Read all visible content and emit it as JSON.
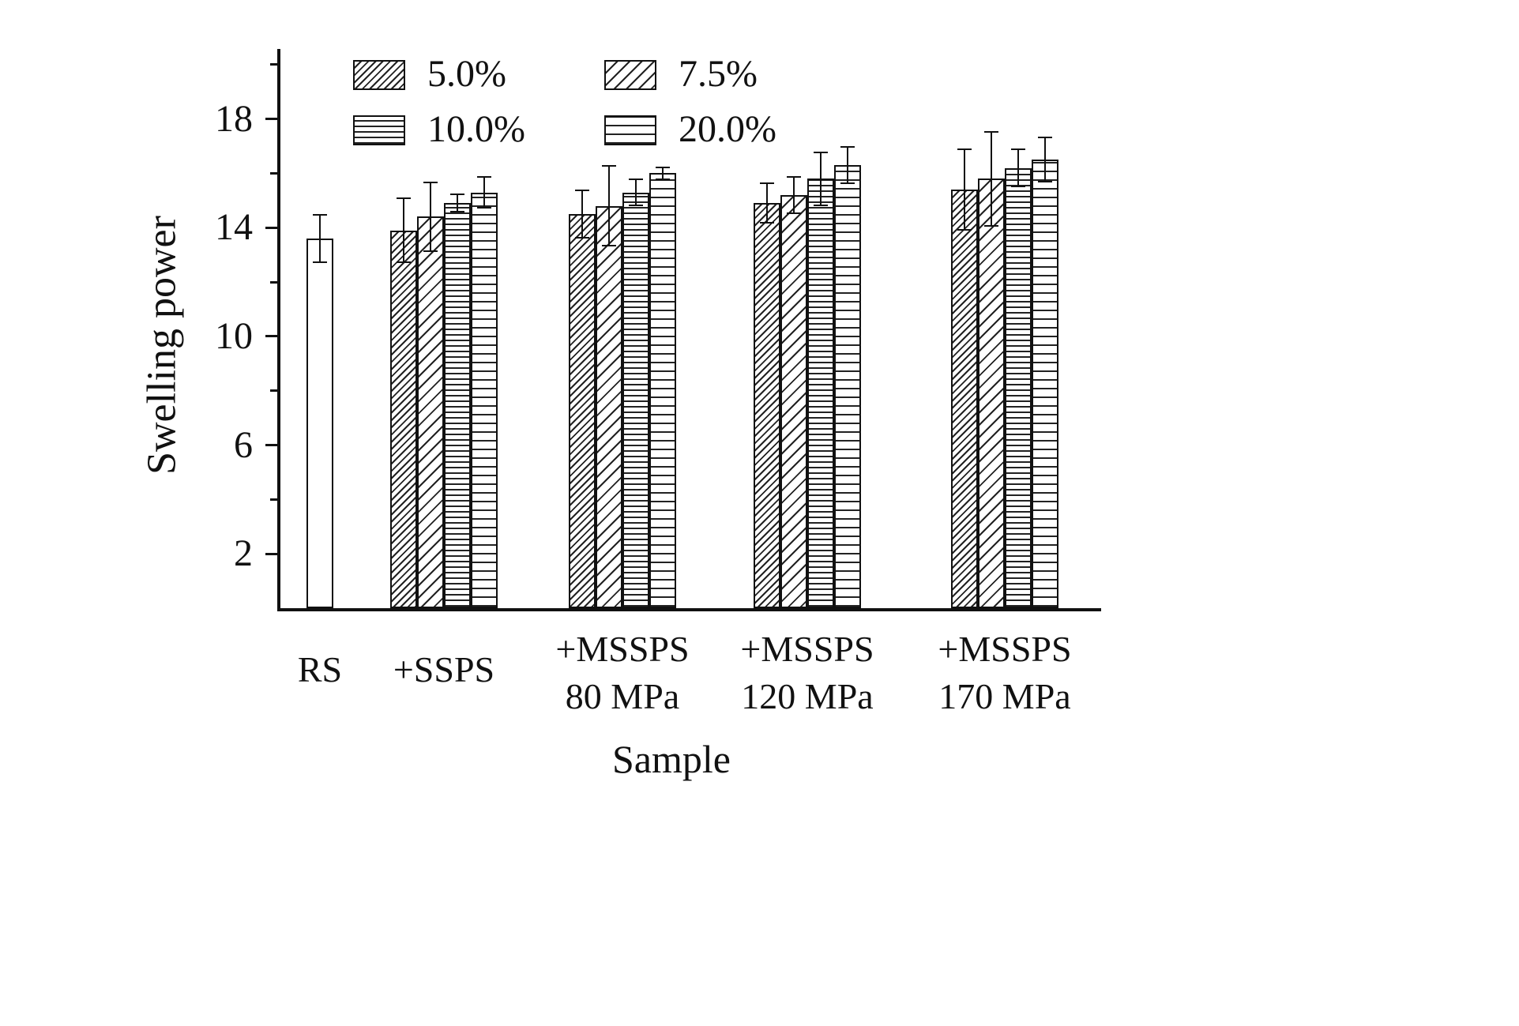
{
  "colors": {
    "ink": "#111111",
    "background": "#ffffff"
  },
  "chart_data": {
    "type": "bar",
    "title": "",
    "xlabel": "Sample",
    "ylabel": "Swelling power",
    "ylim": [
      0,
      20.4
    ],
    "yticks": [
      2,
      6,
      10,
      14,
      18
    ],
    "yticks_minor": [
      4,
      8,
      12,
      16,
      20
    ],
    "grid": false,
    "legend_position": "top-inside",
    "legend": [
      {
        "label": "5.0%",
        "pattern": "diag-dense"
      },
      {
        "label": "7.5%",
        "pattern": "diag-sparse"
      },
      {
        "label": "10.0%",
        "pattern": "horiz-dense"
      },
      {
        "label": "20.0%",
        "pattern": "horiz-sparse"
      }
    ],
    "groups": [
      {
        "label": "RS",
        "label_lines": [
          "RS"
        ],
        "bars": [
          {
            "series": "RS",
            "pattern": "plain",
            "value": 13.6,
            "error": 0.9
          }
        ]
      },
      {
        "label": "+SSPS",
        "label_lines": [
          "+SSPS"
        ],
        "bars": [
          {
            "series": "5.0%",
            "pattern": "diag-dense",
            "value": 13.9,
            "error": 1.2
          },
          {
            "series": "7.5%",
            "pattern": "diag-sparse",
            "value": 14.4,
            "error": 1.3
          },
          {
            "series": "10.0%",
            "pattern": "horiz-dense",
            "value": 14.9,
            "error": 0.35
          },
          {
            "series": "20.0%",
            "pattern": "horiz-sparse",
            "value": 15.3,
            "error": 0.6
          }
        ]
      },
      {
        "label": "+MSSPS 80 MPa",
        "label_lines": [
          "+MSSPS",
          "80 MPa"
        ],
        "bars": [
          {
            "series": "5.0%",
            "pattern": "diag-dense",
            "value": 14.5,
            "error": 0.9
          },
          {
            "series": "7.5%",
            "pattern": "diag-sparse",
            "value": 14.8,
            "error": 1.5
          },
          {
            "series": "10.0%",
            "pattern": "horiz-dense",
            "value": 15.3,
            "error": 0.5
          },
          {
            "series": "20.0%",
            "pattern": "horiz-sparse",
            "value": 16.0,
            "error": 0.25
          }
        ]
      },
      {
        "label": "+MSSPS 120 MPa",
        "label_lines": [
          "+MSSPS",
          "120 MPa"
        ],
        "bars": [
          {
            "series": "5.0%",
            "pattern": "diag-dense",
            "value": 14.9,
            "error": 0.75
          },
          {
            "series": "7.5%",
            "pattern": "diag-sparse",
            "value": 15.2,
            "error": 0.7
          },
          {
            "series": "10.0%",
            "pattern": "horiz-dense",
            "value": 15.8,
            "error": 1.0
          },
          {
            "series": "20.0%",
            "pattern": "horiz-sparse",
            "value": 16.3,
            "error": 0.7
          }
        ]
      },
      {
        "label": "+MSSPS 170 MPa",
        "label_lines": [
          "+MSSPS",
          "170 MPa"
        ],
        "bars": [
          {
            "series": "5.0%",
            "pattern": "diag-dense",
            "value": 15.4,
            "error": 1.5
          },
          {
            "series": "7.5%",
            "pattern": "diag-sparse",
            "value": 15.8,
            "error": 1.75
          },
          {
            "series": "10.0%",
            "pattern": "horiz-dense",
            "value": 16.2,
            "error": 0.7
          },
          {
            "series": "20.0%",
            "pattern": "horiz-sparse",
            "value": 16.5,
            "error": 0.85
          }
        ]
      }
    ]
  }
}
